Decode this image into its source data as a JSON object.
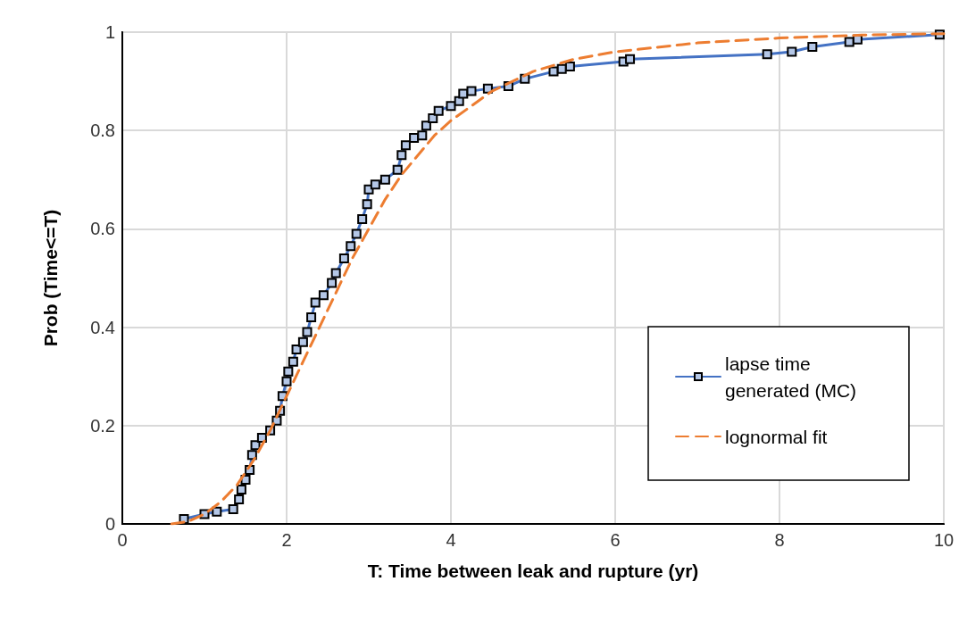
{
  "chart_data": {
    "type": "line",
    "xlabel": "T: Time between leak and rupture (yr)",
    "ylabel": "Prob (Time<=T)",
    "xlim": [
      0,
      10
    ],
    "xticks": [
      0,
      2,
      4,
      6,
      8,
      10
    ],
    "ylim": [
      0,
      1
    ],
    "yticks": [
      0,
      0.2,
      0.4,
      0.6,
      0.8,
      1
    ],
    "grid": true,
    "legend": "bottom right",
    "series": [
      {
        "name": "lapse time generated (MC)",
        "color": "#4472c4",
        "marker": "square",
        "line_style": "solid",
        "x": [
          0.75,
          1.0,
          1.15,
          1.35,
          1.42,
          1.45,
          1.5,
          1.55,
          1.58,
          1.62,
          1.7,
          1.8,
          1.88,
          1.92,
          1.95,
          2.0,
          2.02,
          2.08,
          2.12,
          2.2,
          2.25,
          2.3,
          2.35,
          2.45,
          2.55,
          2.6,
          2.7,
          2.78,
          2.85,
          2.92,
          2.98,
          3.0,
          3.08,
          3.2,
          3.35,
          3.4,
          3.45,
          3.55,
          3.65,
          3.7,
          3.78,
          3.85,
          4.0,
          4.1,
          4.15,
          4.25,
          4.45,
          4.7,
          4.9,
          5.25,
          5.35,
          5.45,
          6.1,
          6.18,
          7.85,
          8.15,
          8.4,
          8.85,
          8.95,
          9.95
        ],
        "values": [
          0.01,
          0.02,
          0.025,
          0.03,
          0.05,
          0.07,
          0.09,
          0.11,
          0.14,
          0.16,
          0.175,
          0.19,
          0.21,
          0.23,
          0.26,
          0.29,
          0.31,
          0.33,
          0.355,
          0.37,
          0.39,
          0.42,
          0.45,
          0.465,
          0.49,
          0.51,
          0.54,
          0.565,
          0.59,
          0.62,
          0.65,
          0.68,
          0.69,
          0.7,
          0.72,
          0.75,
          0.77,
          0.785,
          0.79,
          0.81,
          0.825,
          0.84,
          0.85,
          0.86,
          0.875,
          0.88,
          0.885,
          0.89,
          0.905,
          0.92,
          0.925,
          0.93,
          0.94,
          0.945,
          0.955,
          0.96,
          0.97,
          0.98,
          0.985,
          0.995
        ]
      },
      {
        "name": "lognormal fit",
        "color": "#ed7d31",
        "marker": "none",
        "line_style": "dashed",
        "x": [
          0.6,
          0.8,
          1.0,
          1.2,
          1.4,
          1.6,
          1.8,
          2.0,
          2.2,
          2.4,
          2.6,
          2.8,
          3.0,
          3.2,
          3.4,
          3.6,
          3.8,
          4.0,
          4.5,
          5.0,
          5.5,
          6.0,
          7.0,
          8.0,
          9.0,
          10.0
        ],
        "values": [
          0,
          0.005,
          0.02,
          0.045,
          0.08,
          0.13,
          0.19,
          0.26,
          0.33,
          0.4,
          0.47,
          0.54,
          0.6,
          0.66,
          0.71,
          0.75,
          0.79,
          0.82,
          0.88,
          0.92,
          0.945,
          0.96,
          0.978,
          0.988,
          0.994,
          0.997
        ]
      }
    ]
  }
}
